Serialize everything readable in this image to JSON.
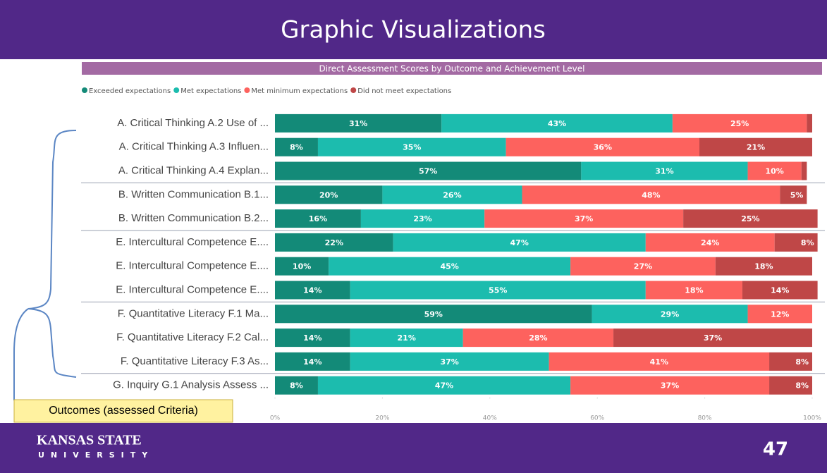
{
  "slide_title": "Graphic Visualizations",
  "callout": "Outcomes (assessed Criteria)",
  "logo": {
    "line1": "KANSAS STATE",
    "line2": "UNIVERSITY"
  },
  "page_number": "47",
  "chart_data": {
    "type": "stacked_bar_horizontal",
    "title": "Direct Assessment Scores by Outcome and Achievement Level",
    "categories": [
      "A. Critical Thinking A.2 Use of ...",
      "A. Critical Thinking A.3 Influen...",
      "A. Critical Thinking A.4 Explan...",
      "B. Written Communication B.1...",
      "B. Written Communication B.2...",
      "E. Intercultural Competence E....",
      "E. Intercultural Competence E....",
      "E. Intercultural Competence E....",
      "F. Quantitative Literacy F.1 Ma...",
      "F. Quantitative Literacy F.2 Cal...",
      "F. Quantitative Literacy F.3 As...",
      "G. Inquiry G.1 Analysis Assess ..."
    ],
    "series": [
      {
        "name": "Exceeded expectations",
        "color": "#138a78",
        "values": [
          31,
          8,
          57,
          20,
          16,
          22,
          10,
          14,
          59,
          14,
          14,
          8
        ],
        "value_labels": [
          "31%",
          "8%",
          "57%",
          "20%",
          "16%",
          "22%",
          "10%",
          "14%",
          "59%",
          "14%",
          "14%",
          "8%"
        ]
      },
      {
        "name": "Met expectations",
        "color": "#1cbcae",
        "values": [
          43,
          35,
          31,
          26,
          23,
          47,
          45,
          55,
          29,
          21,
          37,
          47
        ],
        "value_labels": [
          "43%",
          "35%",
          "31%",
          "26%",
          "23%",
          "47%",
          "45%",
          "55%",
          "29%",
          "21%",
          "37%",
          "47%"
        ]
      },
      {
        "name": "Met minimum expectations",
        "color": "#fd625e",
        "values": [
          25,
          36,
          10,
          48,
          37,
          24,
          27,
          18,
          12,
          28,
          41,
          37
        ],
        "value_labels": [
          "25%",
          "36%",
          "10%",
          "48%",
          "37%",
          "24%",
          "27%",
          "18%",
          "12%",
          "28%",
          "41%",
          "37%"
        ]
      },
      {
        "name": "Did not meet expectations",
        "color": "#bf4747",
        "values": [
          1,
          21,
          1,
          5,
          25,
          8,
          18,
          14,
          0,
          37,
          8,
          8
        ],
        "value_labels": [
          null,
          "21%",
          null,
          "5%",
          "25%",
          "8%",
          "18%",
          "14%",
          null,
          "37%",
          "8%",
          "8%"
        ]
      }
    ],
    "xlim": [
      0,
      100
    ],
    "xticks": [
      {
        "value": 0,
        "label": "0%"
      },
      {
        "value": 20,
        "label": "20%"
      },
      {
        "value": 40,
        "label": "40%"
      },
      {
        "value": 60,
        "label": "60%"
      },
      {
        "value": 80,
        "label": "80%"
      },
      {
        "value": 100,
        "label": "100%"
      }
    ]
  }
}
